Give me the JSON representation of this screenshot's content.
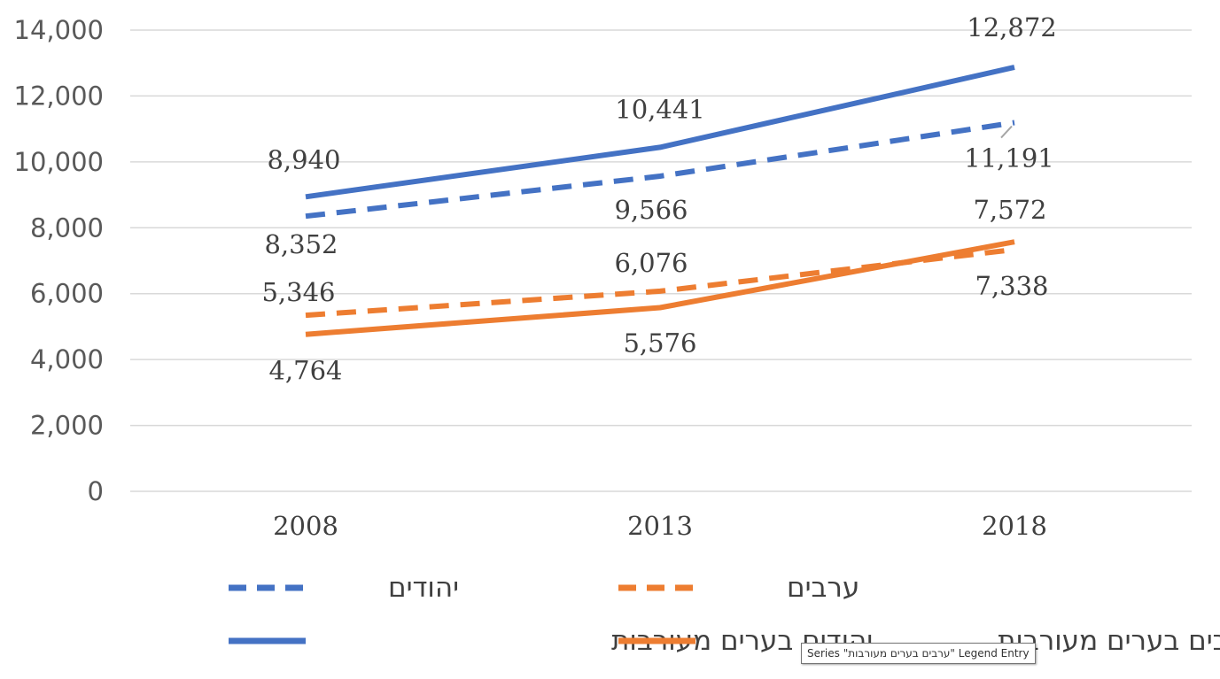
{
  "chart_data": {
    "type": "line",
    "categories": [
      "2008",
      "2013",
      "2018"
    ],
    "ylim": [
      0,
      14000
    ],
    "yticks": [
      "0",
      "2,000",
      "4,000",
      "6,000",
      "8,000",
      "10,000",
      "12,000",
      "14,000"
    ],
    "grid": true,
    "legend_position": "bottom",
    "series": [
      {
        "name": "יהודים",
        "values": [
          8352,
          9566,
          11191
        ],
        "labels": [
          "8,352",
          "9,566",
          "11,191"
        ],
        "color": "#4472C4",
        "style": "dashed"
      },
      {
        "name": "ערבים",
        "values": [
          5346,
          6076,
          7338
        ],
        "labels": [
          "5,346",
          "6,076",
          "7,338"
        ],
        "color": "#ED7D31",
        "style": "dashed"
      },
      {
        "name": "יהודים בערים מעורבות",
        "values": [
          8940,
          10441,
          12872
        ],
        "labels": [
          "8,940",
          "10,441",
          "12,872"
        ],
        "color": "#4472C4",
        "style": "solid"
      },
      {
        "name": "ערבים בערים מעורבות",
        "values": [
          4764,
          5576,
          7572
        ],
        "labels": [
          "4,764",
          "5,576",
          "7,572"
        ],
        "color": "#ED7D31",
        "style": "solid"
      }
    ]
  },
  "tooltip": {
    "text": "Series \"ערבים בערים מעורבות\" Legend Entry"
  }
}
